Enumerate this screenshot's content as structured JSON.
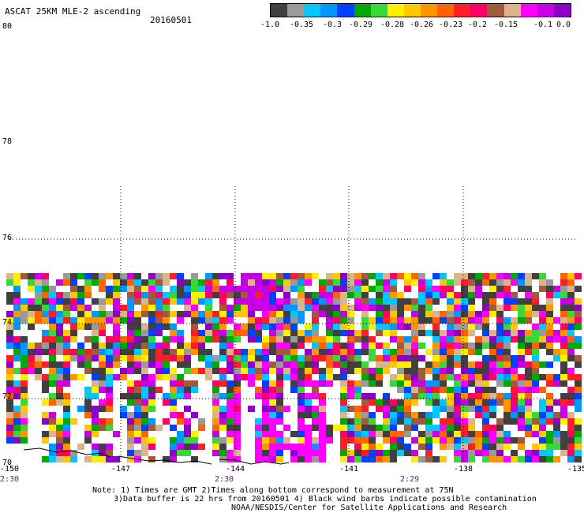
{
  "header": {
    "title": "ASCAT 25KM MLE-2 ascending",
    "date": "20160501"
  },
  "colorbar": {
    "colors": [
      "#404040",
      "#9a9a9a",
      "#00c8ff",
      "#0098ff",
      "#0040ff",
      "#00aa00",
      "#38d838",
      "#fff000",
      "#ffc800",
      "#ff9600",
      "#ff6400",
      "#ff1e28",
      "#ff0064",
      "#a05a3c",
      "#dcb48c",
      "#ff00ff",
      "#c800e6",
      "#8c00c8"
    ],
    "labels": [
      "-1.0",
      "-0.35",
      "-0.3",
      "-0.29",
      "-0.28",
      "-0.26",
      "-0.23",
      "-0.2",
      "-0.15",
      "-0.1",
      "0.0"
    ]
  },
  "axes": {
    "lat_labels": [
      "80",
      "78",
      "76",
      "74",
      "72",
      "70"
    ],
    "lon_labels": [
      "-150",
      "-147",
      "-144",
      "-141",
      "-138",
      "-135"
    ],
    "time_labels": [
      "2:30",
      "2:30",
      "2:29"
    ]
  },
  "notes": {
    "line1": "Note: 1) Times are GMT 2)Times along bottom correspond to measurement at 75N",
    "line2": "3)Data buffer is 22 hrs from 20160501 4) Black wind barbs indicate possible contamination",
    "line3": "NOAA/NESDIS/Center for Satellite Applications and Research"
  }
}
